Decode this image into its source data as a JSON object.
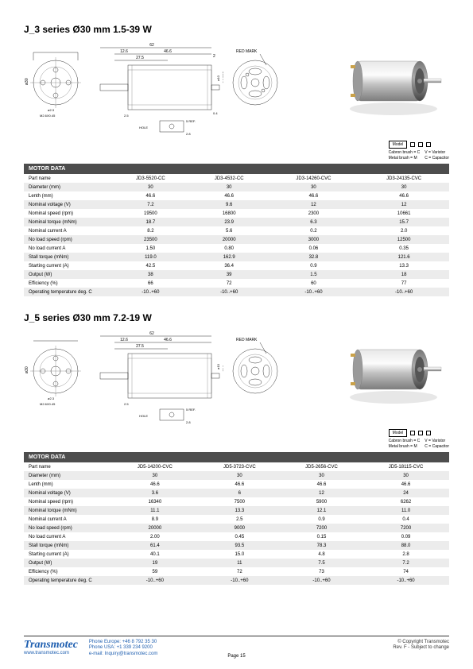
{
  "section1": {
    "title": "J_3 series Ø30 mm 1.5-39 W",
    "dims": {
      "total_w": "62",
      "flange": "12.6",
      "body": "46.6",
      "shaft_out": "2",
      "shaft_len": "27.5",
      "shaft_step": "2.5",
      "dia_a": "ø2.3",
      "dia_b": "ø10",
      "dia_c": "ø22.8",
      "dia_d": "ø27.8",
      "ref": "5 REF.",
      "hole": "HOLE",
      "m": "M2.6X0.45",
      "main_dia": "ø30",
      "redmark": "RED MARK",
      "back_h": "2.8",
      "back_o": "0.4",
      "ref_pad": "ø2.8 REF."
    },
    "legend": {
      "model": "Model",
      "rows": [
        "Cabron brush = C",
        "V = Varistor",
        "Metal brush = M",
        "C = Capacitor"
      ]
    },
    "table": {
      "header": "MOTOR DATA",
      "params": [
        "Part name",
        "Diameter (mm)",
        "Lenth (mm)",
        "Nominal voltage (V)",
        "Nominal speed (rpm)",
        "Nominal torque (mNm)",
        "Nominal current A",
        "No load speed (rpm)",
        "No load current A",
        "Stall torque (mNm)",
        "Starting current (A)",
        "Output (W)",
        "Efficiency (%)",
        "Operating temperature deg. C"
      ],
      "cols": [
        [
          "JD3-5520-CC",
          "30",
          "46.6",
          "7.2",
          "19500",
          "18.7",
          "8.2",
          "23500",
          "1.50",
          "119.0",
          "42.5",
          "38",
          "66",
          "-10..+60"
        ],
        [
          "JD3-4532-CC",
          "30",
          "46.6",
          "9.6",
          "16800",
          "23.9",
          "5.6",
          "20000",
          "0.80",
          "162.9",
          "36.4",
          "39",
          "72",
          "-10..+60"
        ],
        [
          "JD3-14260-CVC",
          "30",
          "46.6",
          "12",
          "2300",
          "6.3",
          "0.2",
          "3000",
          "0.06",
          "32.8",
          "0.9",
          "1.5",
          "60",
          "-10..+60"
        ],
        [
          "JD3-24135-CVC",
          "30",
          "46.6",
          "12",
          "10661",
          "15.7",
          "2.0",
          "12500",
          "0.35",
          "121.6",
          "13.3",
          "18",
          "77",
          "-10..+60"
        ]
      ]
    }
  },
  "section2": {
    "title": "J_5 series Ø30 mm 7.2-19 W",
    "legend": {
      "model": "Model",
      "rows": [
        "Cabron brush = C",
        "V = Varistor",
        "Metal brush = M",
        "C = Capacitor"
      ]
    },
    "table": {
      "header": "MOTOR DATA",
      "params": [
        "Part name",
        "Diameter (mm)",
        "Lenth (mm)",
        "Nominal voltage (V)",
        "Nominal speed (rpm)",
        "Nominal torque (mNm)",
        "Nominal current A",
        "No load speed (rpm)",
        "No load current A",
        "Stall torque (mNm)",
        "Starting current (A)",
        "Output (W)",
        "Efficiency (%)",
        "Operating temperature deg. C"
      ],
      "cols": [
        [
          "JD5-14200-CVC",
          "30",
          "46.6",
          "3.6",
          "16340",
          "11.1",
          "8.9",
          "20000",
          "2.00",
          "61.4",
          "40.1",
          "19",
          "59",
          "-10..+60"
        ],
        [
          "JD5-3723-CVC",
          "30",
          "46.6",
          "6",
          "7500",
          "13.3",
          "2.5",
          "9000",
          "0.45",
          "93.5",
          "15.0",
          "11",
          "72",
          "-10..+60"
        ],
        [
          "JD5-2656-CVC",
          "30",
          "46.6",
          "12",
          "5900",
          "12.1",
          "0.9",
          "7200",
          "0.15",
          "78.3",
          "4.8",
          "7.5",
          "73",
          "-10..+60"
        ],
        [
          "JD5-18115-CVC",
          "30",
          "46.6",
          "24",
          "6262",
          "11.0",
          "0.4",
          "7200",
          "0.09",
          "88.0",
          "2.8",
          "7.2",
          "74",
          "-10..+60"
        ]
      ]
    }
  },
  "footer": {
    "brand": "Transmotec",
    "www": "www.transmotec.com",
    "phone_eu": "Phone Europe: +46 8 792 35 30",
    "phone_us": "Phone USA:    +1 339 234 9200",
    "email": "e-mail: Inquiry@transmotec.com",
    "page": "Page 15",
    "copyright": "© Copyright Transmotec",
    "rev": "Rev. F - Subject to change"
  }
}
